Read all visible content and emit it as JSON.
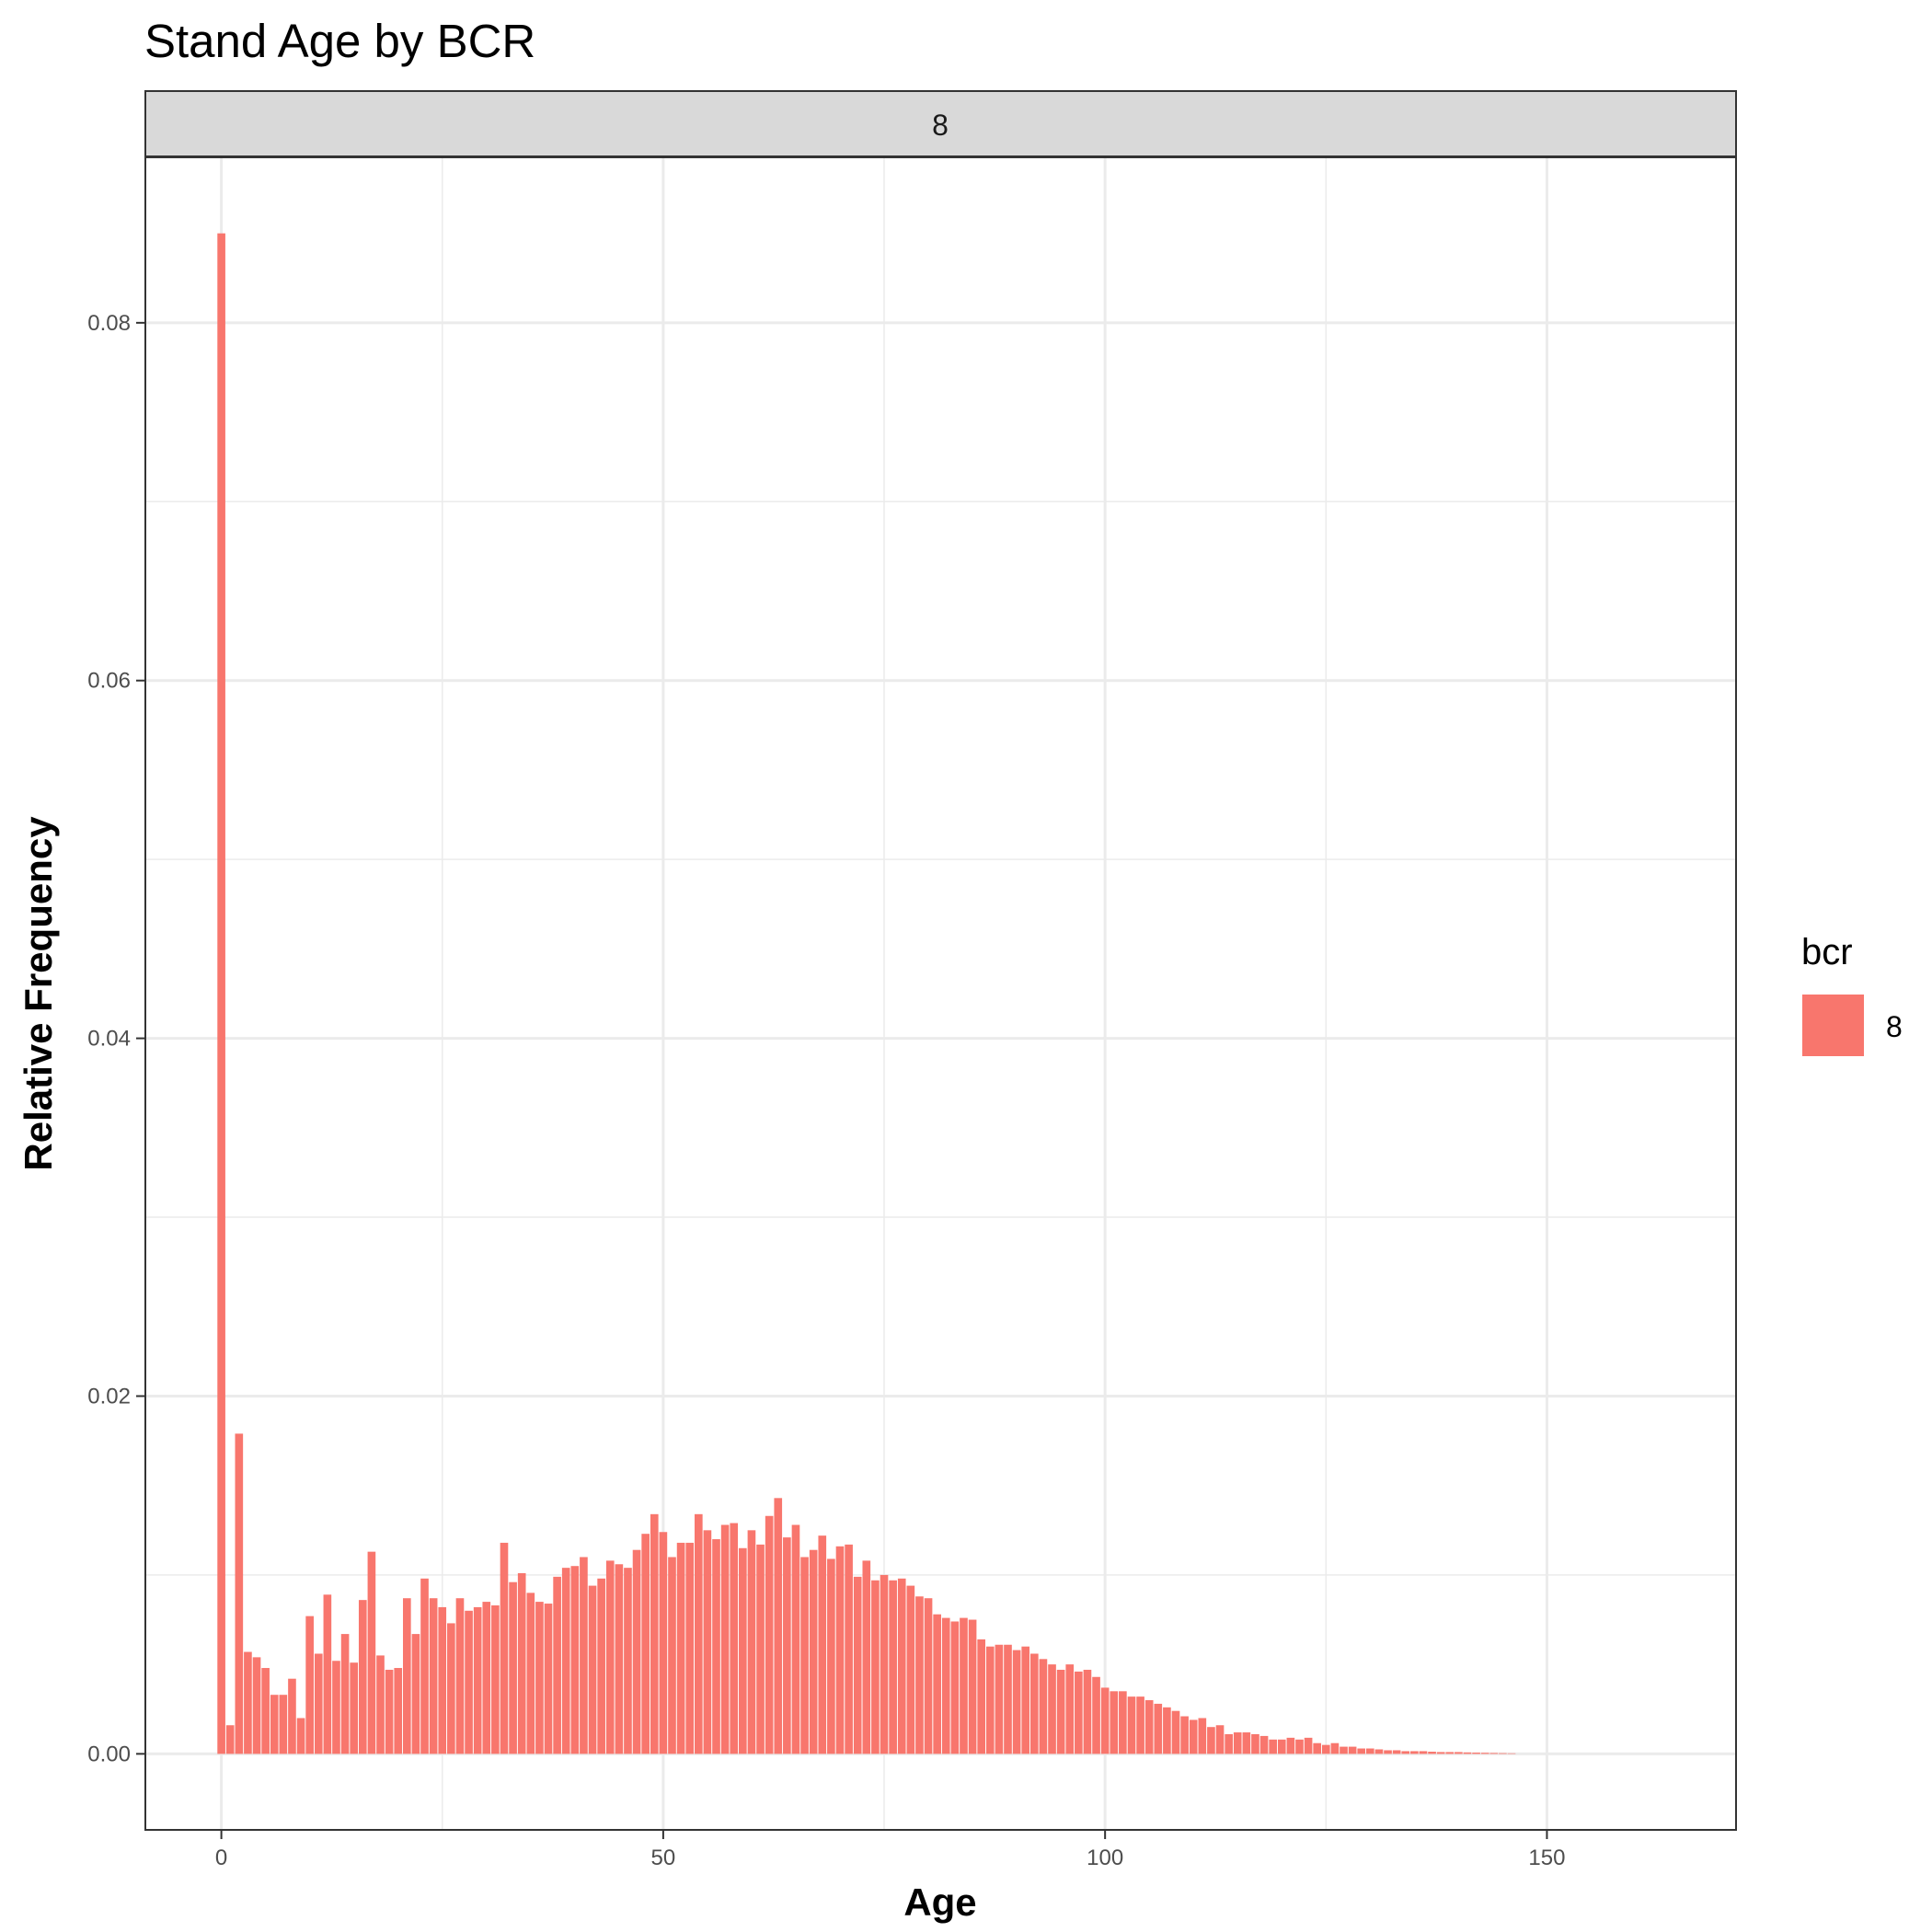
{
  "chart_data": {
    "type": "bar",
    "title": "Stand Age by BCR",
    "facet_label": "8",
    "xlabel": "Age",
    "ylabel": "Relative Frequency",
    "xlim": [
      -8.6,
      171.4
    ],
    "ylim": [
      -0.00425,
      0.08925
    ],
    "x_ticks": [
      0,
      50,
      100,
      150
    ],
    "x_tick_labels": [
      "0",
      "50",
      "100",
      "150"
    ],
    "y_ticks": [
      0.0,
      0.02,
      0.04,
      0.06,
      0.08
    ],
    "y_tick_labels": [
      "0.00",
      "0.02",
      "0.04",
      "0.06",
      "0.08"
    ],
    "grid": true,
    "legend_position": "right",
    "legend": {
      "title": "bcr",
      "entries": [
        "8"
      ],
      "colors": [
        "#F8766D"
      ]
    },
    "series": [
      {
        "name": "8",
        "color": "#F8766D",
        "x": [
          0,
          1,
          2,
          3,
          4,
          5,
          6,
          7,
          8,
          9,
          10,
          11,
          12,
          13,
          14,
          15,
          16,
          17,
          18,
          19,
          20,
          21,
          22,
          23,
          24,
          25,
          26,
          27,
          28,
          29,
          30,
          31,
          32,
          33,
          34,
          35,
          36,
          37,
          38,
          39,
          40,
          41,
          42,
          43,
          44,
          45,
          46,
          47,
          48,
          49,
          50,
          51,
          52,
          53,
          54,
          55,
          56,
          57,
          58,
          59,
          60,
          61,
          62,
          63,
          64,
          65,
          66,
          67,
          68,
          69,
          70,
          71,
          72,
          73,
          74,
          75,
          76,
          77,
          78,
          79,
          80,
          81,
          82,
          83,
          84,
          85,
          86,
          87,
          88,
          89,
          90,
          91,
          92,
          93,
          94,
          95,
          96,
          97,
          98,
          99,
          100,
          101,
          102,
          103,
          104,
          105,
          106,
          107,
          108,
          109,
          110,
          111,
          112,
          113,
          114,
          115,
          116,
          117,
          118,
          119,
          120,
          121,
          122,
          123,
          124,
          125,
          126,
          127,
          128,
          129,
          130,
          131,
          132,
          133,
          134,
          135,
          136,
          137,
          138,
          139,
          140,
          141,
          142,
          143,
          144,
          145,
          146
        ],
        "values": [
          0.085,
          0.0016,
          0.0179,
          0.0057,
          0.0054,
          0.0048,
          0.0033,
          0.0033,
          0.0042,
          0.002,
          0.0077,
          0.0056,
          0.0089,
          0.0052,
          0.0067,
          0.0051,
          0.0086,
          0.0113,
          0.0055,
          0.0047,
          0.0048,
          0.0087,
          0.0067,
          0.0098,
          0.0087,
          0.0082,
          0.0073,
          0.0087,
          0.008,
          0.0082,
          0.0085,
          0.0083,
          0.0118,
          0.0096,
          0.0101,
          0.009,
          0.0085,
          0.0084,
          0.0099,
          0.0104,
          0.0105,
          0.011,
          0.0094,
          0.0098,
          0.0108,
          0.0106,
          0.0104,
          0.0114,
          0.0123,
          0.0134,
          0.0124,
          0.011,
          0.0118,
          0.0118,
          0.0134,
          0.0125,
          0.012,
          0.0128,
          0.0129,
          0.0115,
          0.0125,
          0.0117,
          0.0133,
          0.0143,
          0.0121,
          0.0128,
          0.011,
          0.0114,
          0.0122,
          0.0109,
          0.0116,
          0.0117,
          0.0099,
          0.0108,
          0.0097,
          0.01,
          0.0097,
          0.0098,
          0.0094,
          0.0088,
          0.0087,
          0.0078,
          0.0076,
          0.0074,
          0.0076,
          0.0075,
          0.0064,
          0.006,
          0.0061,
          0.0061,
          0.0058,
          0.006,
          0.0056,
          0.0053,
          0.005,
          0.0047,
          0.005,
          0.0046,
          0.0047,
          0.0043,
          0.0037,
          0.0035,
          0.0035,
          0.0032,
          0.0032,
          0.003,
          0.0028,
          0.0026,
          0.0024,
          0.0021,
          0.0019,
          0.002,
          0.0015,
          0.0016,
          0.0011,
          0.0012,
          0.0012,
          0.0011,
          0.001,
          0.0008,
          0.0008,
          0.0009,
          0.0008,
          0.0009,
          0.0006,
          0.0005,
          0.0006,
          0.0004,
          0.0004,
          0.0003,
          0.0003,
          0.00025,
          0.0002,
          0.0002,
          0.00015,
          0.00015,
          0.00015,
          0.00012,
          0.0001,
          0.0001,
          0.0001,
          8e-05,
          7e-05,
          6e-05,
          5e-05,
          4e-05,
          3e-05
        ]
      }
    ]
  }
}
